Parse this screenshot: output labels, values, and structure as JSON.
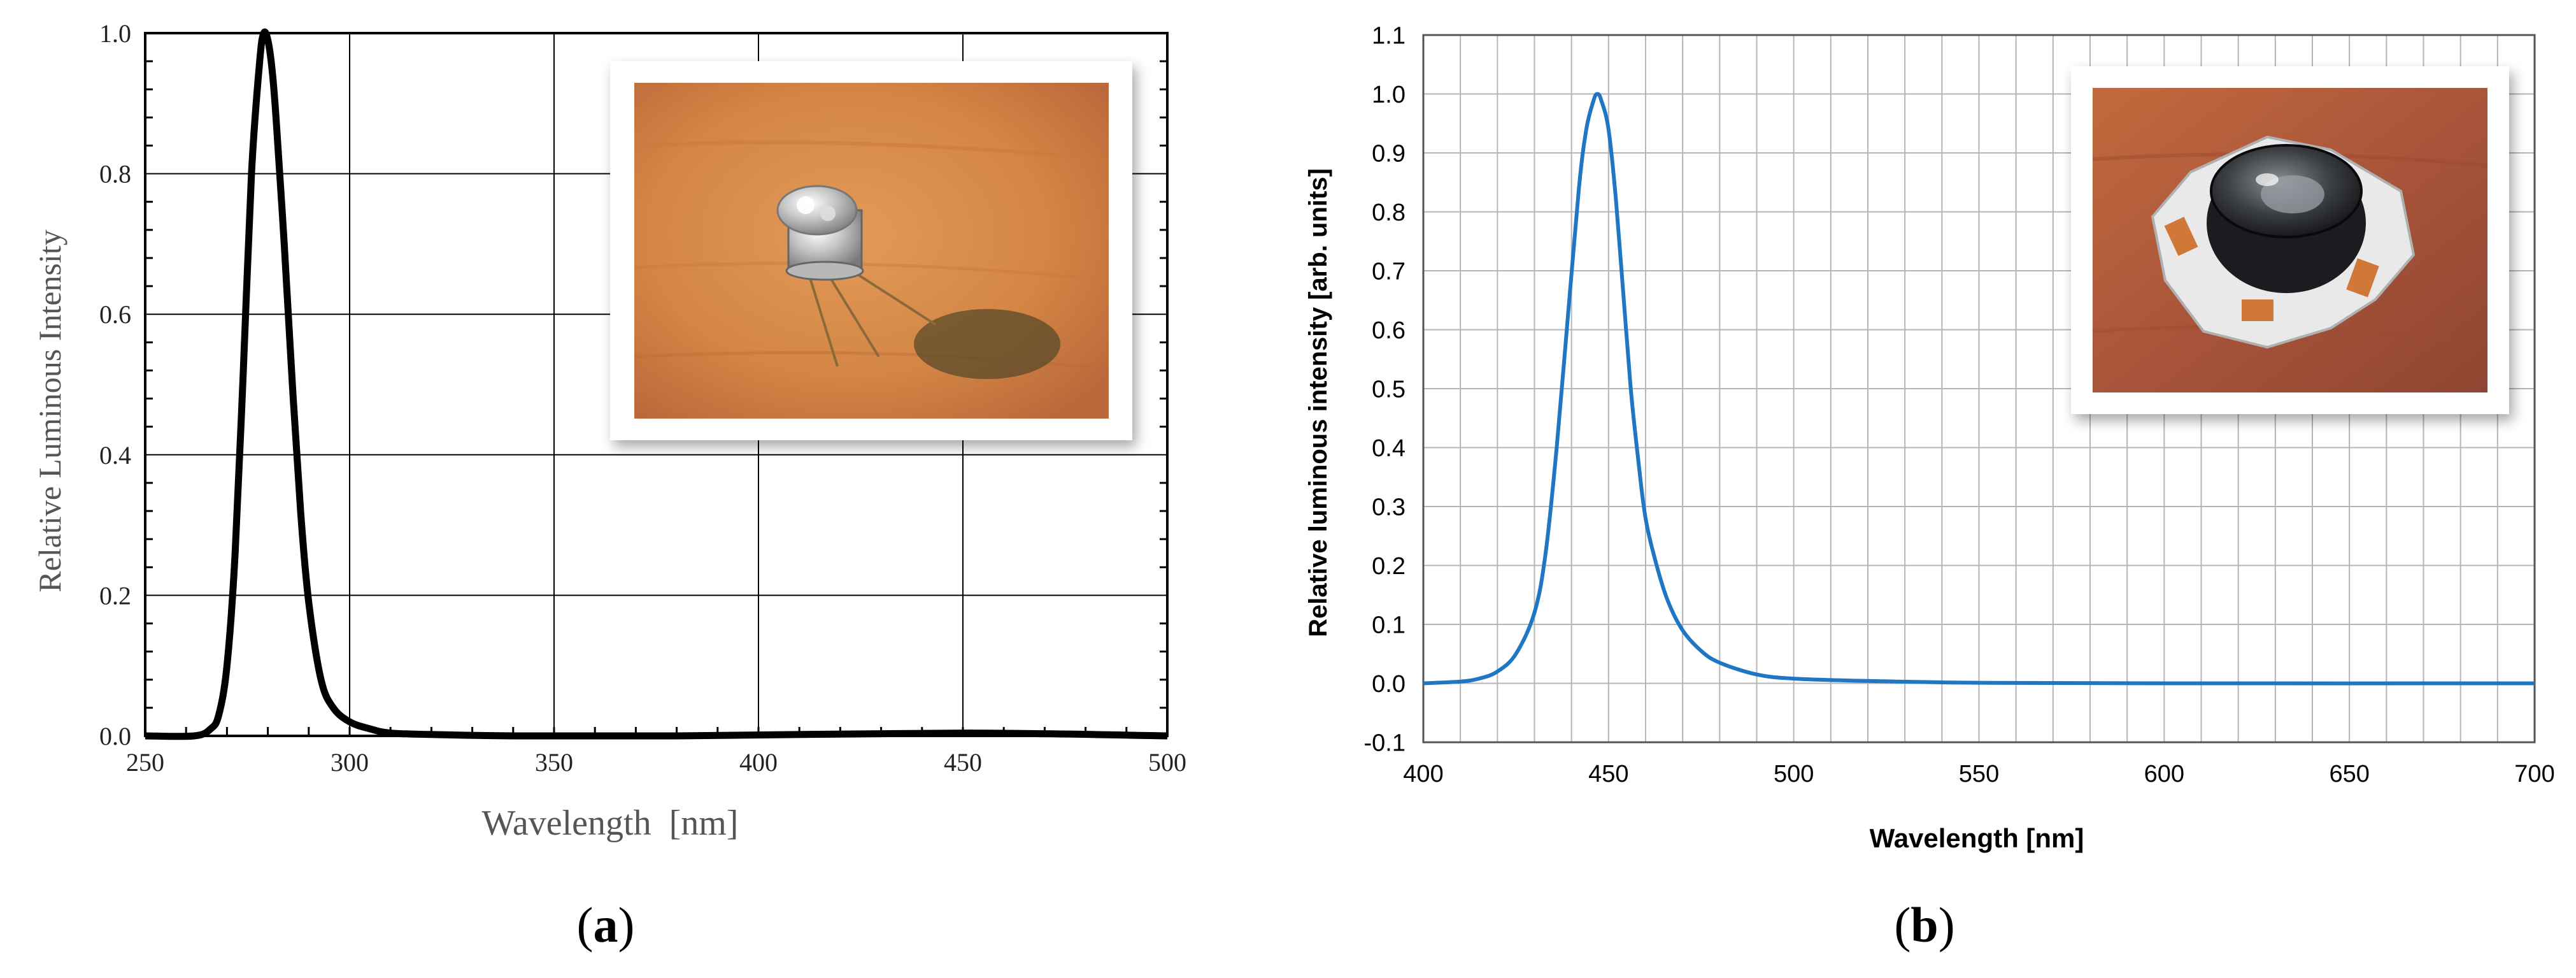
{
  "chart_data": [
    {
      "type": "line",
      "panel_label": "a",
      "xlabel": "Wavelength  [nm]",
      "ylabel": "Relative Luminous Intensity",
      "xlim": [
        250,
        500
      ],
      "ylim": [
        0,
        1.0
      ],
      "x_ticks": [
        250,
        300,
        350,
        400,
        450,
        500
      ],
      "y_ticks": [
        0.0,
        0.2,
        0.4,
        0.6,
        0.8,
        1.0
      ],
      "x_tick_labels": [
        "250",
        "300",
        "350",
        "400",
        "450",
        "500"
      ],
      "y_tick_labels": [
        "0.0",
        "0.2",
        "0.4",
        "0.6",
        "0.8",
        "1.0"
      ],
      "grid": true,
      "inset_photo": "uv-led-to-can-photo",
      "series_color": "#000000",
      "series": [
        {
          "x": [
            250,
            262,
            266,
            268,
            270,
            272,
            274,
            276,
            278,
            279,
            280,
            281,
            282,
            284,
            286,
            288,
            290,
            293,
            296,
            300,
            305,
            310,
            320,
            340,
            380,
            450,
            500
          ],
          "y": [
            0.0,
            0.0,
            0.01,
            0.03,
            0.1,
            0.26,
            0.52,
            0.8,
            0.96,
            1.0,
            0.99,
            0.95,
            0.88,
            0.7,
            0.5,
            0.32,
            0.19,
            0.08,
            0.04,
            0.02,
            0.01,
            0.004,
            0.002,
            0.0,
            0.0,
            0.004,
            0.0
          ]
        }
      ]
    },
    {
      "type": "line",
      "panel_label": "b",
      "xlabel": "Wavelength [nm]",
      "ylabel": "Relative luminous intensity [arb. units]",
      "xlim": [
        400,
        700
      ],
      "ylim": [
        -0.1,
        1.1
      ],
      "x_ticks": [
        400,
        450,
        500,
        550,
        600,
        650,
        700
      ],
      "y_ticks": [
        -0.1,
        0.0,
        0.1,
        0.2,
        0.3,
        0.4,
        0.5,
        0.6,
        0.7,
        0.8,
        0.9,
        1.0,
        1.1
      ],
      "x_tick_labels": [
        "400",
        "450",
        "500",
        "550",
        "600",
        "650",
        "700"
      ],
      "y_tick_labels": [
        "-0.1",
        "0.0",
        "0.1",
        "0.2",
        "0.3",
        "0.4",
        "0.5",
        "0.6",
        "0.7",
        "0.8",
        "0.9",
        "1.0",
        "1.1"
      ],
      "grid": true,
      "inset_photo": "blue-led-star-board-photo",
      "series_color": "#1f77c4",
      "series": [
        {
          "x": [
            400,
            410,
            415,
            420,
            425,
            430,
            433,
            436,
            439,
            442,
            444,
            446,
            447,
            448,
            450,
            452,
            454,
            456,
            458,
            460,
            463,
            466,
            470,
            475,
            480,
            490,
            500,
            520,
            550,
            600,
            700
          ],
          "y": [
            0.0,
            0.003,
            0.008,
            0.02,
            0.05,
            0.12,
            0.22,
            0.4,
            0.62,
            0.84,
            0.94,
            0.99,
            1.0,
            0.99,
            0.94,
            0.82,
            0.66,
            0.5,
            0.38,
            0.28,
            0.2,
            0.14,
            0.09,
            0.055,
            0.035,
            0.015,
            0.008,
            0.004,
            0.001,
            0.0,
            0.0
          ]
        }
      ]
    }
  ]
}
